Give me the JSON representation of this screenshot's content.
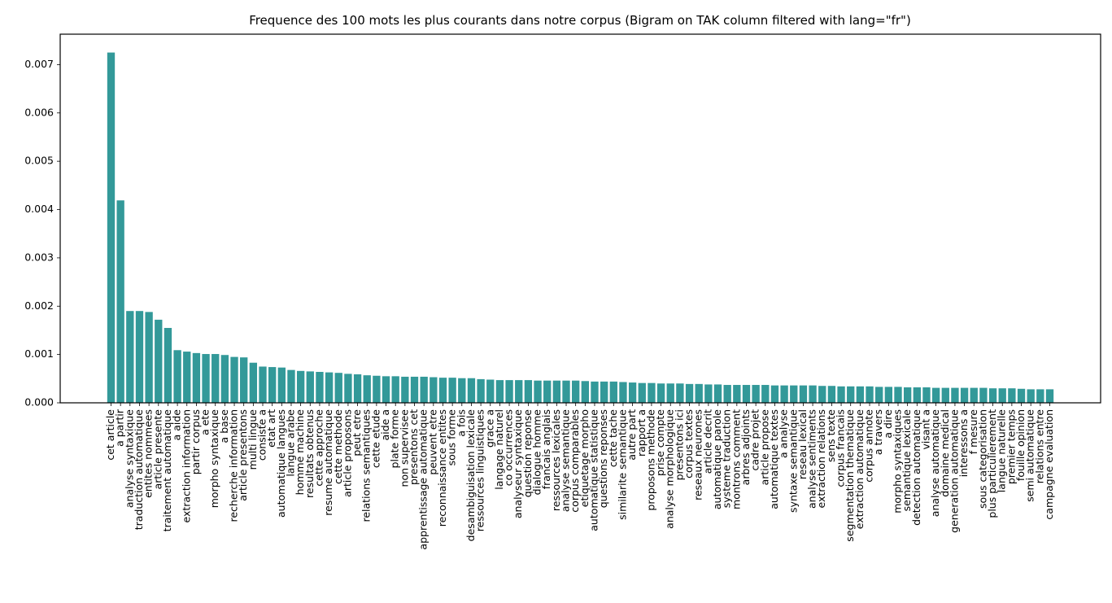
{
  "chart_data": {
    "type": "bar",
    "title": "Frequence des 100 mots les plus courants dans notre corpus (Bigram on TAK column filtered with lang=\"fr\")",
    "xlabel": "",
    "ylabel": "",
    "ylim": [
      0,
      0.00763
    ],
    "yticks": [
      "0.000",
      "0.001",
      "0.002",
      "0.003",
      "0.004",
      "0.005",
      "0.006",
      "0.007"
    ],
    "grid": false,
    "bar_color": "#339999",
    "categories": [
      "cet article",
      "a partir",
      "analyse syntaxique",
      "traduction automatique",
      "entites nommees",
      "article presente",
      "traitement automatique",
      "a aide",
      "extraction information",
      "partir corpus",
      "a ete",
      "morpho syntaxique",
      "a base",
      "recherche information",
      "article presentons",
      "multi lingue",
      "consiste a",
      "etat art",
      "automatique langues",
      "langue arabe",
      "homme machine",
      "resultats obtenus",
      "cette approche",
      "resume automatique",
      "cette methode",
      "article proposons",
      "peut etre",
      "relations semantiques",
      "cette etude",
      "aide a",
      "plate forme",
      "non supervisee",
      "presentons cet",
      "apprentissage automatique",
      "peuvent etre",
      "reconnaissance entites",
      "sous forme",
      "a fois",
      "desambiguisation lexicale",
      "ressources linguistiques",
      "grace a",
      "langage naturel",
      "co occurrences",
      "analyseur syntaxique",
      "question reponse",
      "dialogue homme",
      "francais anglais",
      "ressources lexicales",
      "analyse semantique",
      "corpus comparables",
      "etiquetage morpho",
      "automatique statistique",
      "questions reponses",
      "cette tache",
      "similarite semantique",
      "autre part",
      "rapport a",
      "proposons methode",
      "prise compte",
      "analyse morphologique",
      "presentons ici",
      "corpus textes",
      "reseaux neurones",
      "article decrit",
      "automatique parole",
      "systeme traduction",
      "montrons comment",
      "arbres adjoints",
      "cadre projet",
      "article propose",
      "automatique textes",
      "a analyse",
      "syntaxe semantique",
      "reseau lexical",
      "analyse sentiments",
      "extraction relations",
      "sens texte",
      "corpus francais",
      "segmentation thematique",
      "extraction automatique",
      "corpus annote",
      "a travers",
      "a dire",
      "morpho syntaxiques",
      "semantique lexicale",
      "detection automatique",
      "visant a",
      "analyse automatique",
      "domaine medical",
      "generation automatique",
      "interessons a",
      "f mesure",
      "sous categorisation",
      "plus particulierement",
      "langue naturelle",
      "premier temps",
      "fouille opinion",
      "semi automatique",
      "relations entre",
      "campagne evaluation"
    ],
    "values": [
      0.00725,
      0.00419,
      0.0019,
      0.0019,
      0.00188,
      0.00172,
      0.00155,
      0.00109,
      0.00106,
      0.00103,
      0.00101,
      0.00101,
      0.00099,
      0.00095,
      0.00094,
      0.00083,
      0.00075,
      0.00074,
      0.00073,
      0.00068,
      0.00066,
      0.00065,
      0.00064,
      0.00063,
      0.00062,
      0.0006,
      0.00059,
      0.00057,
      0.00056,
      0.00055,
      0.00055,
      0.00054,
      0.00054,
      0.00054,
      0.00053,
      0.00052,
      0.00052,
      0.00051,
      0.00051,
      0.00049,
      0.00048,
      0.00047,
      0.00047,
      0.00047,
      0.00047,
      0.00046,
      0.00046,
      0.00046,
      0.00046,
      0.00046,
      0.00045,
      0.00044,
      0.00044,
      0.00044,
      0.00043,
      0.00042,
      0.00041,
      0.00041,
      0.0004,
      0.0004,
      0.0004,
      0.00039,
      0.00039,
      0.00038,
      0.00038,
      0.00037,
      0.00037,
      0.00037,
      0.00037,
      0.00037,
      0.00036,
      0.00036,
      0.00036,
      0.00036,
      0.00036,
      0.00035,
      0.00035,
      0.00034,
      0.00034,
      0.00034,
      0.00034,
      0.00033,
      0.00033,
      0.00033,
      0.00032,
      0.00032,
      0.00032,
      0.00031,
      0.00031,
      0.00031,
      0.00031,
      0.00031,
      0.00031,
      0.0003,
      0.0003,
      0.0003,
      0.00029,
      0.00028,
      0.00028,
      0.00028
    ]
  }
}
